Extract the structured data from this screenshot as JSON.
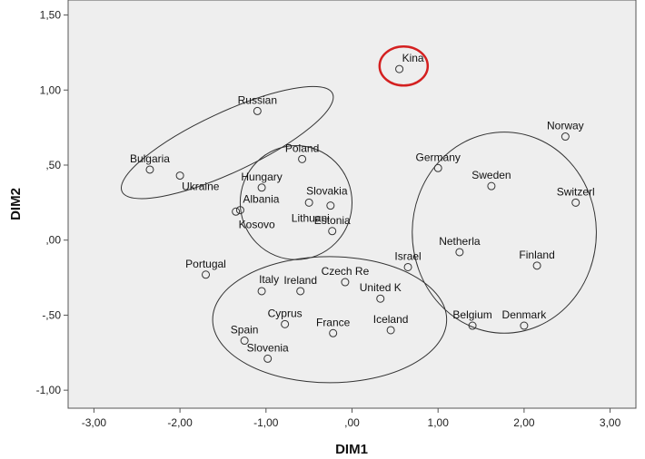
{
  "chart_data": {
    "type": "scatter",
    "title": "",
    "xlabel": "DIM1",
    "ylabel": "DIM2",
    "xlim": [
      -3.3,
      3.3
    ],
    "ylim": [
      -1.12,
      1.6
    ],
    "x_ticks": [
      {
        "value": -3,
        "label": "-3,00"
      },
      {
        "value": -2,
        "label": "-2,00"
      },
      {
        "value": -1,
        "label": "-1,00"
      },
      {
        "value": 0,
        "label": ",00"
      },
      {
        "value": 1,
        "label": "1,00"
      },
      {
        "value": 2,
        "label": "2,00"
      },
      {
        "value": 3,
        "label": "3,00"
      }
    ],
    "y_ticks": [
      {
        "value": 1.5,
        "label": "1,50"
      },
      {
        "value": 1.0,
        "label": "1,00"
      },
      {
        "value": 0.5,
        "label": ",50"
      },
      {
        "value": 0.0,
        "label": ",00"
      },
      {
        "value": -0.5,
        "label": "-,50"
      },
      {
        "value": -1.0,
        "label": "-1,00"
      }
    ],
    "grid": false,
    "plot_background": "#eeeeee",
    "point_color": "#333333",
    "highlight_color": "#d42020",
    "points": [
      {
        "label": "Kina",
        "x": 0.55,
        "y": 1.14,
        "label_pos": "right",
        "highlight": true
      },
      {
        "label": "Russian",
        "x": -1.1,
        "y": 0.86,
        "label_pos": "above"
      },
      {
        "label": "Bulgaria",
        "x": -2.35,
        "y": 0.47,
        "label_pos": "above"
      },
      {
        "label": "Ukraine",
        "x": -2.0,
        "y": 0.43,
        "label_pos": "below"
      },
      {
        "label": "Poland",
        "x": -0.58,
        "y": 0.54,
        "label_pos": "above"
      },
      {
        "label": "Hungary",
        "x": -1.05,
        "y": 0.35,
        "label_pos": "above"
      },
      {
        "label": "Slovakia",
        "x": -0.5,
        "y": 0.25,
        "label_pos": "above-right"
      },
      {
        "label": "Albania",
        "x": -1.3,
        "y": 0.2,
        "label_pos": "right"
      },
      {
        "label": "Kosovo",
        "x": -1.35,
        "y": 0.19,
        "label_pos": "below-right"
      },
      {
        "label": "Lithuani",
        "x": -0.25,
        "y": 0.23,
        "label_pos": "below-left"
      },
      {
        "label": "Estonia",
        "x": -0.23,
        "y": 0.06,
        "label_pos": "above"
      },
      {
        "label": "Portugal",
        "x": -1.7,
        "y": -0.23,
        "label_pos": "above"
      },
      {
        "label": "Italy",
        "x": -1.05,
        "y": -0.34,
        "label_pos": "above-right"
      },
      {
        "label": "Ireland",
        "x": -0.6,
        "y": -0.34,
        "label_pos": "above"
      },
      {
        "label": "Czech Re",
        "x": -0.08,
        "y": -0.28,
        "label_pos": "above"
      },
      {
        "label": "Israel",
        "x": 0.65,
        "y": -0.18,
        "label_pos": "above"
      },
      {
        "label": "United K",
        "x": 0.33,
        "y": -0.39,
        "label_pos": "above"
      },
      {
        "label": "Cyprus",
        "x": -0.78,
        "y": -0.56,
        "label_pos": "above"
      },
      {
        "label": "France",
        "x": -0.22,
        "y": -0.62,
        "label_pos": "above"
      },
      {
        "label": "Iceland",
        "x": 0.45,
        "y": -0.6,
        "label_pos": "above"
      },
      {
        "label": "Spain",
        "x": -1.25,
        "y": -0.67,
        "label_pos": "above"
      },
      {
        "label": "Slovenia",
        "x": -0.98,
        "y": -0.79,
        "label_pos": "above"
      },
      {
        "label": "Germany",
        "x": 1.0,
        "y": 0.48,
        "label_pos": "above"
      },
      {
        "label": "Sweden",
        "x": 1.62,
        "y": 0.36,
        "label_pos": "above"
      },
      {
        "label": "Norway",
        "x": 2.48,
        "y": 0.69,
        "label_pos": "above"
      },
      {
        "label": "Switzerl",
        "x": 2.6,
        "y": 0.25,
        "label_pos": "above"
      },
      {
        "label": "Netherla",
        "x": 1.25,
        "y": -0.08,
        "label_pos": "above"
      },
      {
        "label": "Finland",
        "x": 2.15,
        "y": -0.17,
        "label_pos": "above"
      },
      {
        "label": "Belgium",
        "x": 1.4,
        "y": -0.57,
        "label_pos": "above"
      },
      {
        "label": "Denmark",
        "x": 2.0,
        "y": -0.57,
        "label_pos": "above"
      }
    ],
    "enclosures": [
      {
        "name": "",
        "cx": -1.45,
        "cy": 0.65,
        "rx": 1.35,
        "ry": 0.2,
        "angle": -25,
        "color": "#333333"
      },
      {
        "name": "",
        "cx": -0.65,
        "cy": 0.25,
        "rx": 0.65,
        "ry": 0.38,
        "angle": 0,
        "color": "#333333"
      },
      {
        "name": "",
        "cx": -0.26,
        "cy": -0.53,
        "rx": 1.36,
        "ry": 0.42,
        "angle": 0,
        "color": "#333333"
      },
      {
        "name": "",
        "cx": 1.77,
        "cy": 0.05,
        "rx": 1.07,
        "ry": 0.67,
        "angle": 0,
        "color": "#333333"
      },
      {
        "name": "",
        "cx": 0.6,
        "cy": 1.16,
        "rx": 0.28,
        "ry": 0.13,
        "angle": 0,
        "color": "#d42020"
      }
    ]
  }
}
